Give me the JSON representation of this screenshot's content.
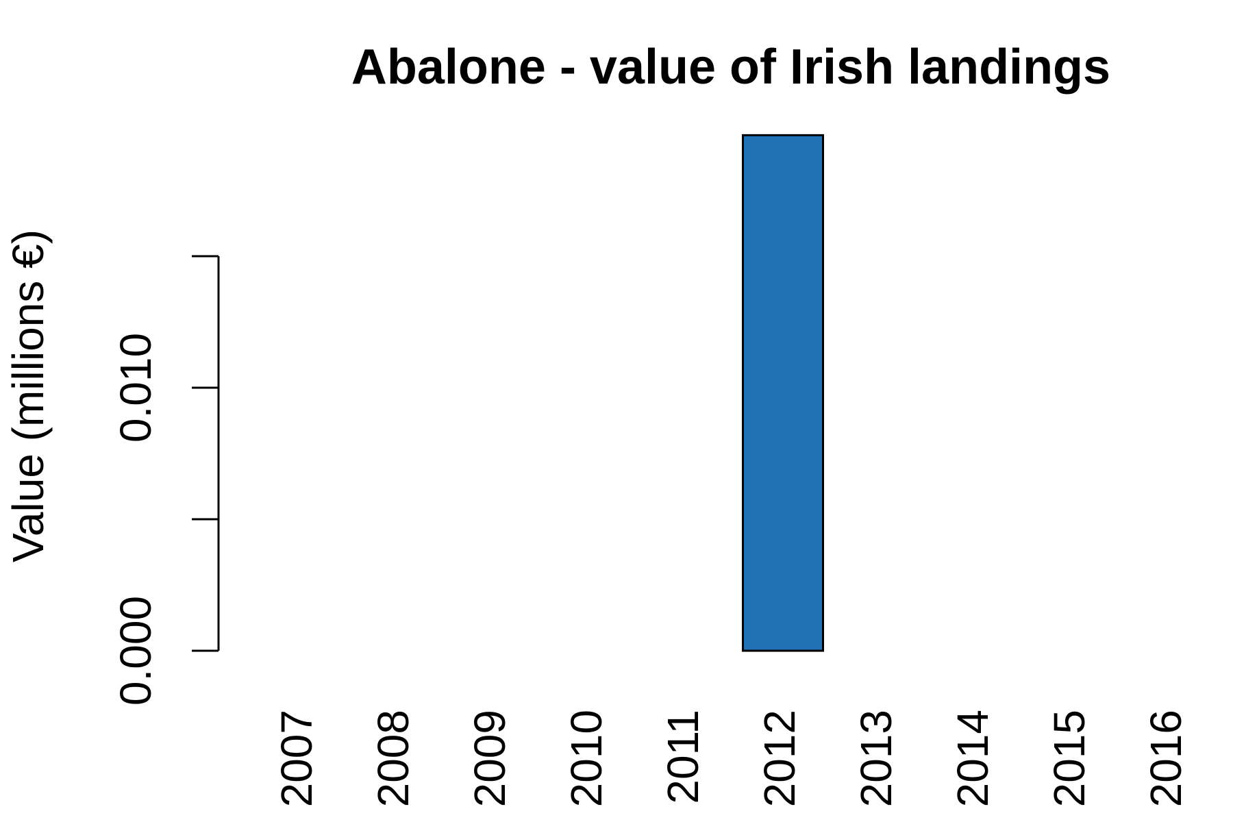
{
  "chart_data": {
    "type": "bar",
    "title": "Abalone - value of Irish landings",
    "y_label": "Value (millions €)",
    "categories": [
      "2007",
      "2008",
      "2009",
      "2010",
      "2011",
      "2012",
      "2013",
      "2014",
      "2015",
      "2016"
    ],
    "values": [
      null,
      null,
      null,
      null,
      null,
      0.0196,
      null,
      null,
      null,
      null
    ],
    "color": "#2171b5",
    "ylim": [
      0,
      0.02
    ],
    "yticks": [
      {
        "value": 0,
        "label": "0.000"
      },
      {
        "value": 0.005,
        "label": null
      },
      {
        "value": 0.01,
        "label": "0.010"
      },
      {
        "value": 0.015,
        "label": null
      }
    ],
    "grid": false
  }
}
